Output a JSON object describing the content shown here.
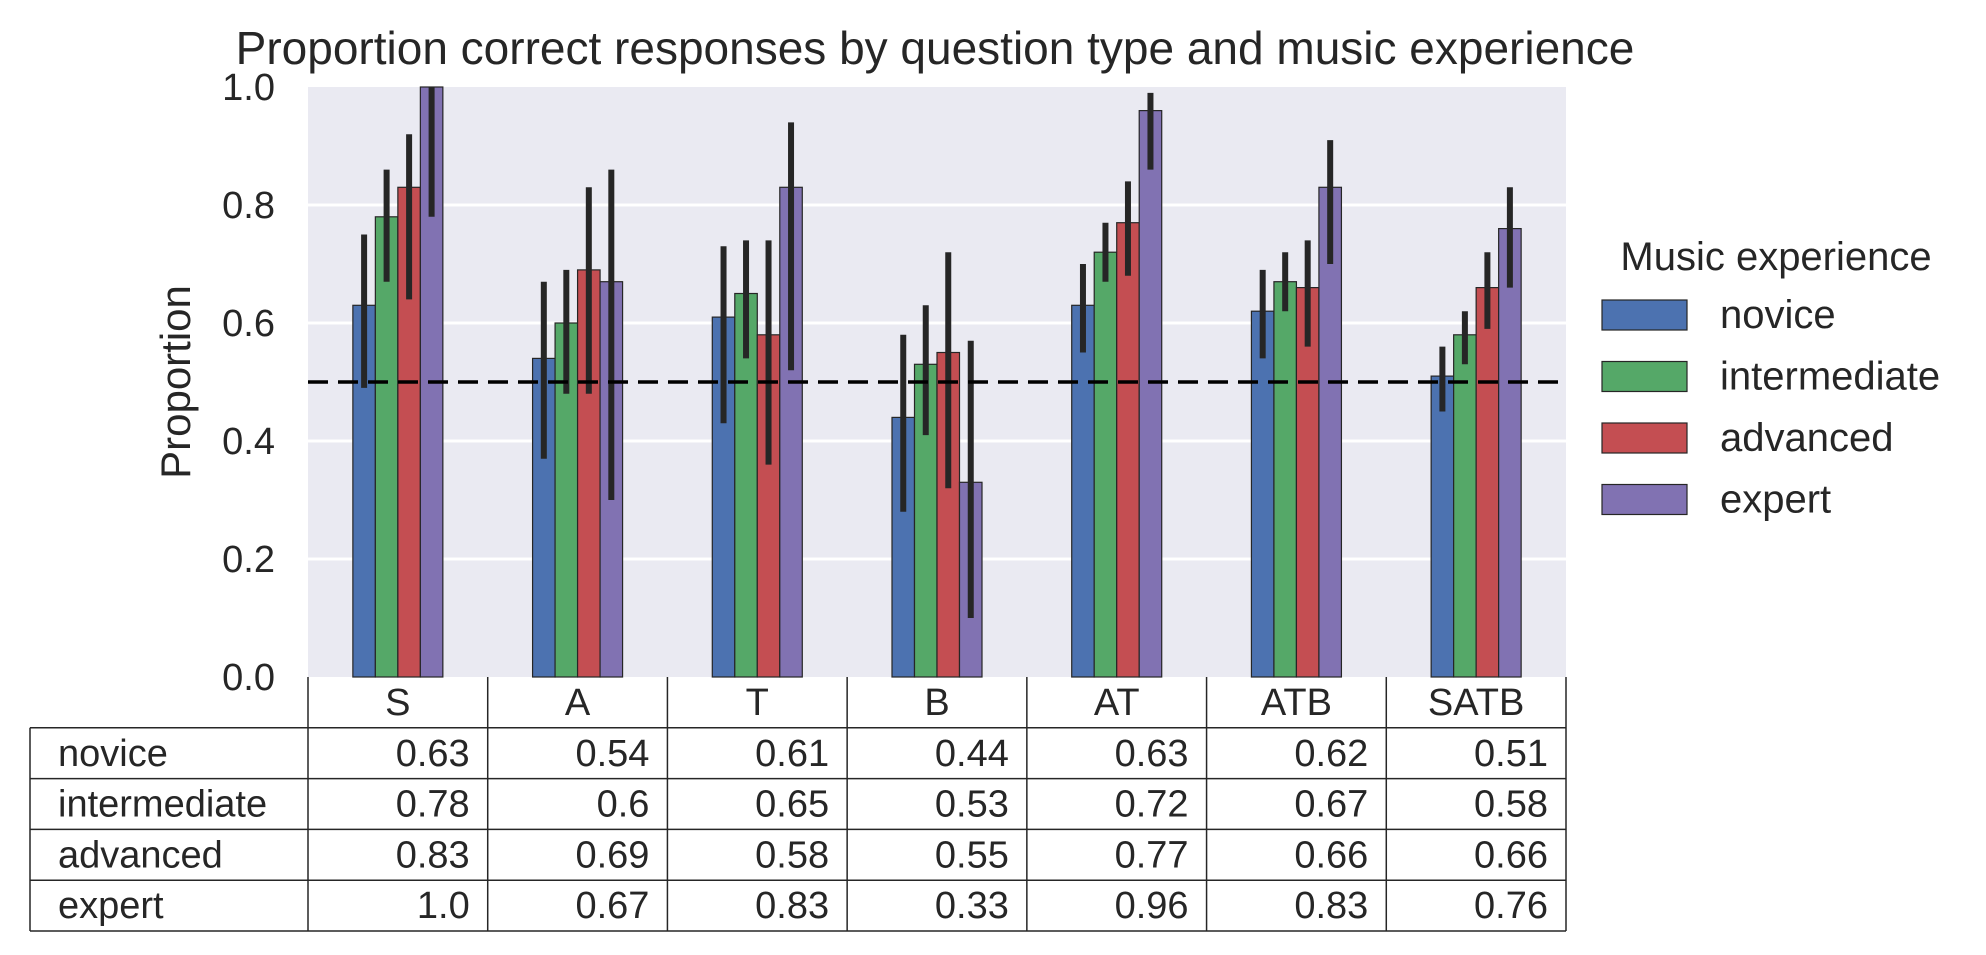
{
  "chart_data": {
    "type": "bar",
    "title": "Proportion correct responses by question type and music experience",
    "ylabel": "Proportion",
    "xlabel": "",
    "ylim": [
      0,
      1.0
    ],
    "yticks": [
      "0.0",
      "0.2",
      "0.4",
      "0.6",
      "0.8",
      "1.0"
    ],
    "reference_line": 0.5,
    "grid": true,
    "legend": {
      "title": "Music experience",
      "placement": "right"
    },
    "categories": [
      "S",
      "A",
      "T",
      "B",
      "AT",
      "ATB",
      "SATB"
    ],
    "series": [
      {
        "name": "novice",
        "color": "#4c72b0",
        "values": [
          0.63,
          0.54,
          0.61,
          0.44,
          0.63,
          0.62,
          0.51
        ],
        "labels": [
          "0.63",
          "0.54",
          "0.61",
          "0.44",
          "0.63",
          "0.62",
          "0.51"
        ],
        "ci": [
          [
            0.49,
            0.75
          ],
          [
            0.37,
            0.67
          ],
          [
            0.43,
            0.73
          ],
          [
            0.28,
            0.58
          ],
          [
            0.55,
            0.7
          ],
          [
            0.54,
            0.69
          ],
          [
            0.45,
            0.56
          ]
        ]
      },
      {
        "name": "intermediate",
        "color": "#55a868",
        "values": [
          0.78,
          0.6,
          0.65,
          0.53,
          0.72,
          0.67,
          0.58
        ],
        "labels": [
          "0.78",
          "0.6",
          "0.65",
          "0.53",
          "0.72",
          "0.67",
          "0.58"
        ],
        "ci": [
          [
            0.67,
            0.86
          ],
          [
            0.48,
            0.69
          ],
          [
            0.54,
            0.74
          ],
          [
            0.41,
            0.63
          ],
          [
            0.67,
            0.77
          ],
          [
            0.62,
            0.72
          ],
          [
            0.53,
            0.62
          ]
        ]
      },
      {
        "name": "advanced",
        "color": "#c44e52",
        "values": [
          0.83,
          0.69,
          0.58,
          0.55,
          0.77,
          0.66,
          0.66
        ],
        "labels": [
          "0.83",
          "0.69",
          "0.58",
          "0.55",
          "0.77",
          "0.66",
          "0.66"
        ],
        "ci": [
          [
            0.64,
            0.92
          ],
          [
            0.48,
            0.83
          ],
          [
            0.36,
            0.74
          ],
          [
            0.32,
            0.72
          ],
          [
            0.68,
            0.84
          ],
          [
            0.56,
            0.74
          ],
          [
            0.59,
            0.72
          ]
        ]
      },
      {
        "name": "expert",
        "color": "#8172b2",
        "values": [
          1.0,
          0.67,
          0.83,
          0.33,
          0.96,
          0.83,
          0.76
        ],
        "labels": [
          "1.0",
          "0.67",
          "0.83",
          "0.33",
          "0.96",
          "0.83",
          "0.76"
        ],
        "ci": [
          [
            0.78,
            1.0
          ],
          [
            0.3,
            0.86
          ],
          [
            0.52,
            0.94
          ],
          [
            0.1,
            0.57
          ],
          [
            0.86,
            0.99
          ],
          [
            0.7,
            0.91
          ],
          [
            0.66,
            0.83
          ]
        ]
      }
    ]
  }
}
